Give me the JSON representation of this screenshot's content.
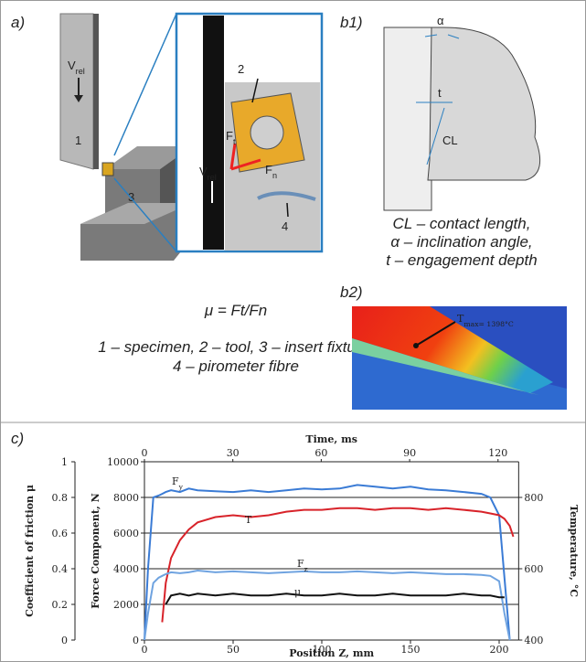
{
  "panels": {
    "a": {
      "label": "a)",
      "v_rel": "Vrel",
      "n1": "1",
      "n3": "3",
      "n2": "2",
      "ft": "Ft",
      "fn": "Fn",
      "v_rel_inset": "Vrel",
      "n4": "4"
    },
    "b1": {
      "label": "b1)",
      "alpha": "α",
      "t": "t",
      "cl": "CL",
      "caption": [
        "CL – contact length,",
        "α – inclination angle,",
        "t – engagement depth"
      ]
    },
    "b2": {
      "label": "b2)",
      "tmax": "Tmax= 1398°C"
    },
    "formula": "μ = Ft/Fn",
    "legend": [
      "1 – specimen, 2 – tool, 3 – insert fixture,",
      "4 – pirometer fibre"
    ],
    "c": {
      "label": "c)"
    }
  },
  "chart_data": {
    "type": "line",
    "x_label": "Position Z,  mm",
    "x2_label": "Time,  ms",
    "y_label": "Force Component,  N",
    "y2_label": "Temperature, °C",
    "y3_label": "Coefficient of friction μ",
    "x": [
      0,
      2,
      5,
      8,
      10,
      12,
      15,
      20,
      25,
      30,
      40,
      50,
      60,
      70,
      80,
      90,
      100,
      110,
      120,
      130,
      140,
      150,
      160,
      170,
      180,
      190,
      195,
      200,
      203,
      206,
      208
    ],
    "xlim": [
      0,
      211
    ],
    "xticks": [
      0,
      50,
      100,
      150,
      200
    ],
    "x2lim": [
      0,
      127
    ],
    "x2ticks": [
      0,
      30,
      60,
      90,
      120
    ],
    "ylim": [
      0,
      10000
    ],
    "yticks": [
      0,
      2000,
      4000,
      6000,
      8000,
      10000
    ],
    "y2lim": [
      400,
      900
    ],
    "y2ticks": [
      400,
      600,
      800
    ],
    "y3lim": [
      0,
      1
    ],
    "y3ticks": [
      0,
      0.2,
      0.4,
      0.6,
      0.8,
      1
    ],
    "grid": true,
    "series": [
      {
        "name": "Fy",
        "color": "#3a7bd5",
        "axis": "y",
        "values": [
          0,
          4000,
          8000,
          8100,
          8200,
          8300,
          8400,
          8300,
          8500,
          8400,
          8350,
          8300,
          8400,
          8300,
          8400,
          8500,
          8450,
          8500,
          8700,
          8600,
          8500,
          8600,
          8450,
          8400,
          8300,
          8200,
          8000,
          7000,
          3500,
          0,
          null
        ]
      },
      {
        "name": "T",
        "color": "#d8232a",
        "axis": "y2",
        "values": [
          null,
          null,
          null,
          null,
          450,
          560,
          630,
          680,
          710,
          730,
          745,
          750,
          745,
          750,
          760,
          765,
          765,
          770,
          770,
          765,
          770,
          770,
          765,
          770,
          765,
          760,
          755,
          750,
          740,
          720,
          690
        ]
      },
      {
        "name": "Fz",
        "color": "#6fa3e0",
        "axis": "y",
        "values": [
          0,
          1500,
          3200,
          3500,
          3600,
          3700,
          3800,
          3750,
          3800,
          3900,
          3800,
          3850,
          3800,
          3750,
          3800,
          3850,
          3800,
          3800,
          3850,
          3800,
          3750,
          3800,
          3750,
          3700,
          3700,
          3650,
          3600,
          3300,
          1500,
          0,
          null
        ]
      },
      {
        "name": "μ",
        "color": "#111111",
        "axis": "y3",
        "values": [
          null,
          null,
          null,
          null,
          null,
          0.2,
          0.25,
          0.26,
          0.25,
          0.26,
          0.25,
          0.26,
          0.25,
          0.25,
          0.26,
          0.25,
          0.25,
          0.26,
          0.25,
          0.25,
          0.26,
          0.25,
          0.25,
          0.25,
          0.26,
          0.25,
          0.25,
          0.24,
          0.24,
          null,
          null
        ]
      }
    ]
  }
}
